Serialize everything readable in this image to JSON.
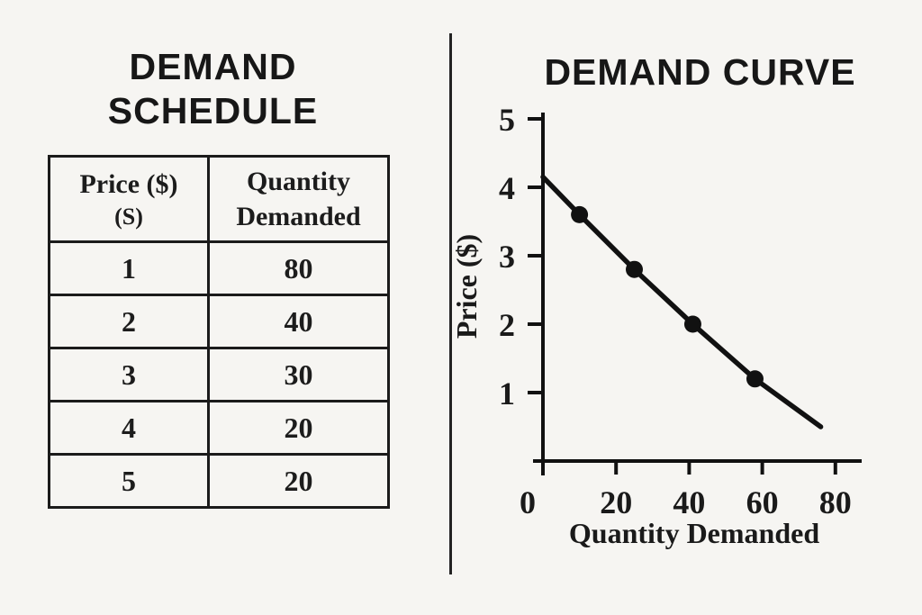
{
  "page": {
    "background": "#f6f5f2",
    "ink": "#1a1a1a"
  },
  "schedule": {
    "title_line1": "DEMAND",
    "title_line2": "SCHEDULE",
    "table": {
      "col1_header": [
        "Price ($)",
        "(S)"
      ],
      "col2_header": [
        "Quantity",
        "Demanded"
      ],
      "rows": [
        {
          "price": "1",
          "quantity": "80"
        },
        {
          "price": "2",
          "quantity": "40"
        },
        {
          "price": "3",
          "quantity": "30"
        },
        {
          "price": "4",
          "quantity": "20"
        },
        {
          "price": "5",
          "quantity": "20"
        }
      ]
    }
  },
  "chart_data": {
    "type": "line",
    "title": "DEMAND CURVE",
    "xlabel": "Quantity Demanded",
    "ylabel": "Price ($)",
    "x_ticks": [
      0,
      20,
      40,
      60,
      80
    ],
    "y_ticks": [
      1,
      2,
      3,
      4,
      5
    ],
    "xlim": [
      0,
      87
    ],
    "ylim": [
      0,
      5.1
    ],
    "grid": false,
    "legend": "none",
    "line_color": "#111111",
    "line_points": [
      [
        0,
        4.15
      ],
      [
        10,
        3.6
      ],
      [
        25,
        2.8
      ],
      [
        41,
        2.0
      ],
      [
        58,
        1.2
      ],
      [
        76,
        0.5
      ]
    ],
    "marker_points": [
      [
        10,
        3.6
      ],
      [
        25,
        2.8
      ],
      [
        41,
        2.0
      ],
      [
        58,
        1.2
      ]
    ]
  }
}
